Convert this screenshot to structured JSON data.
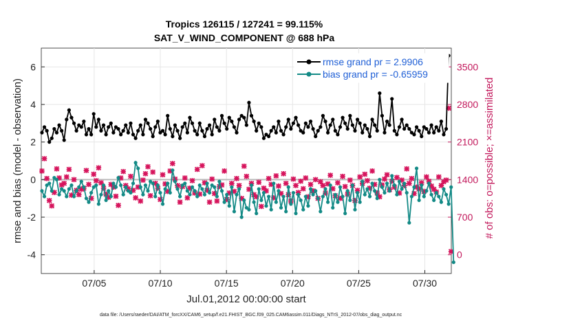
{
  "chart_data": {
    "type": "line",
    "title_line1": "Tropics 126115 / 127241 = 99.115%",
    "title_line2": "SAT_V_WIND_COMPONENT @ 688 hPa",
    "xlabel": "Jul.01,2012 00:00:00 start",
    "ylabel": "rmse and bias (model - observation)",
    "y2label": "# of obs: o=possible; ×=assimilated",
    "xlim": [
      1,
      32
    ],
    "ylim": [
      -5,
      7
    ],
    "y2lim": [
      -350,
      3850
    ],
    "x_ticks": [
      5,
      10,
      15,
      20,
      25,
      30
    ],
    "x_tick_labels": [
      "07/05",
      "07/10",
      "07/15",
      "07/20",
      "07/25",
      "07/30"
    ],
    "y_ticks": [
      -4,
      -2,
      0,
      2,
      4,
      6
    ],
    "y_tick_labels": [
      "-4",
      "-2",
      "0",
      "2",
      "4",
      "6"
    ],
    "y2_ticks": [
      0,
      700,
      1400,
      2100,
      2800,
      3500
    ],
    "y2_tick_labels": [
      "0",
      "700",
      "1400",
      "2100",
      "2800",
      "3500"
    ],
    "series": [
      {
        "name": "rmse grand pr = 2.9906",
        "color": "#000000"
      },
      {
        "name": "bias grand pr = -0.65959",
        "color": "#138a86"
      },
      {
        "name": "obs assimilated",
        "color": "#d6145c"
      }
    ],
    "rmse_values": [
      2.5,
      2.8,
      2.6,
      2.0,
      2.2,
      2.7,
      2.5,
      2.9,
      2.6,
      2.1,
      3.2,
      3.7,
      3.3,
      3.0,
      2.6,
      2.9,
      2.8,
      3.1,
      2.4,
      2.7,
      2.4,
      3.5,
      2.8,
      3.2,
      2.6,
      2.9,
      2.4,
      2.8,
      3.0,
      2.5,
      2.8,
      2.7,
      2.4,
      2.6,
      2.9,
      2.5,
      3.0,
      2.4,
      2.2,
      2.6,
      2.9,
      2.4,
      3.2,
      3.0,
      2.7,
      2.3,
      2.8,
      3.1,
      2.5,
      2.6,
      2.4,
      3.4,
      2.7,
      2.3,
      2.9,
      2.6,
      2.2,
      2.8,
      3.0,
      2.5,
      3.3,
      3.0,
      2.6,
      2.4,
      3.0,
      2.6,
      2.3,
      2.7,
      2.9,
      2.4,
      3.2,
      2.8,
      2.6,
      3.4,
      3.0,
      2.7,
      3.3,
      3.1,
      2.8,
      2.5,
      3.2,
      3.4,
      3.3,
      2.9,
      4.1,
      3.4,
      3.1,
      2.6,
      3.0,
      2.8,
      2.2,
      2.4,
      2.3,
      2.6,
      2.8,
      2.5,
      3.1,
      2.6,
      2.4,
      2.8,
      3.2,
      2.7,
      3.0,
      3.3,
      2.9,
      2.6,
      2.5,
      3.0,
      2.8,
      3.1,
      2.7,
      2.3,
      2.6,
      2.8,
      3.4,
      3.1,
      2.5,
      2.9,
      3.2,
      2.6,
      2.4,
      2.8,
      3.3,
      3.0,
      2.7,
      3.4,
      2.9,
      2.6,
      3.2,
      3.0,
      2.5,
      2.9,
      2.7,
      2.3,
      3.2,
      2.9,
      2.6,
      4.6,
      3.4,
      2.5,
      3.1,
      2.9,
      4.3,
      2.6,
      2.4,
      2.8,
      3.2,
      2.7,
      2.9,
      2.7,
      2.5,
      2.4,
      2.8,
      2.6,
      2.3,
      2.8,
      2.7,
      2.5,
      2.9,
      2.5,
      2.8,
      2.6,
      3.1,
      2.4,
      2.7,
      6.6
    ],
    "bias_values": [
      -0.6,
      -0.9,
      -0.3,
      -0.2,
      -0.6,
      0.1,
      0.0,
      -0.8,
      -0.5,
      -0.6,
      -0.9,
      -0.5,
      -0.3,
      -0.9,
      -0.6,
      -0.4,
      -0.1,
      -0.4,
      -1.0,
      -1.2,
      -0.7,
      -0.4,
      -0.3,
      -1.3,
      -0.8,
      -0.3,
      -1.1,
      -0.6,
      -0.9,
      -0.2,
      -0.4,
      0.1,
      -0.3,
      -0.8,
      -0.4,
      -0.6,
      -0.7,
      -0.2,
      0.9,
      0.6,
      -0.4,
      -0.8,
      -0.3,
      -0.6,
      -0.1,
      -0.2,
      -0.9,
      -0.3,
      -0.7,
      -1.3,
      -0.5,
      -0.2,
      -0.7,
      0.5,
      -0.1,
      -0.5,
      -0.9,
      -0.3,
      -0.2,
      -0.6,
      -0.8,
      -0.4,
      -0.6,
      -0.9,
      -0.3,
      -0.5,
      -0.8,
      -0.2,
      -0.7,
      -0.3,
      -0.4,
      -0.9,
      -0.1,
      -0.6,
      -1.2,
      -0.8,
      -1.4,
      -0.4,
      -1.7,
      -0.8,
      -0.5,
      -2.0,
      -1.1,
      -1.5,
      -1.6,
      -0.3,
      -1.2,
      -1.8,
      -0.5,
      -1.1,
      -0.7,
      -1.4,
      -0.9,
      -1.6,
      -0.2,
      -1.2,
      -0.6,
      -1.5,
      -0.9,
      -1.7,
      -0.4,
      -1.3,
      -0.7,
      -1.8,
      -0.8,
      -1.1,
      -1.6,
      -0.9,
      -1.4,
      -0.5,
      -0.8,
      -0.6,
      -1.0,
      -1.7,
      -0.9,
      -0.5,
      -1.2,
      -0.3,
      -1.5,
      -0.8,
      -1.2,
      -0.4,
      -0.9,
      -1.8,
      -0.6,
      -1.1,
      -0.3,
      -1.6,
      -0.7,
      -1.2,
      -0.1,
      -0.8,
      -0.5,
      -0.9,
      -0.2,
      -0.6,
      -1.0,
      0.0,
      -0.4,
      -0.7,
      -0.2,
      -0.6,
      0.2,
      -0.3,
      -0.8,
      -0.1,
      -0.5,
      -0.2,
      -0.7,
      -2.3,
      -0.9,
      -0.4,
      0.6,
      -1.1,
      -0.3,
      -0.9,
      -0.6,
      -0.2,
      -0.8,
      -1.1,
      -0.7,
      -0.9,
      -1.2,
      -0.5,
      -0.8,
      -1.3,
      -0.4,
      -4.4
    ],
    "obs_values": [
      1560,
      1790,
      1420,
      1010,
      910,
      1160,
      1600,
      1430,
      1300,
      1330,
      1450,
      1590,
      1110,
      1400,
      1200,
      1120,
      1220,
      1240,
      1570,
      1310,
      1050,
      1500,
      1380,
      1620,
      1340,
      1240,
      1130,
      1070,
      1310,
      1260,
      1090,
      920,
      1430,
      1550,
      1290,
      1230,
      1460,
      1200,
      1060,
      1260,
      1000,
      1390,
      1510,
      1640,
      1100,
      1540,
      1330,
      1240,
      1030,
      1490,
      1320,
      1180,
      1560,
      1700,
      1410,
      1290,
      980,
      1270,
      1430,
      1060,
      1240,
      1380,
      1150,
      1590,
      1130,
      1660,
      1340,
      1200,
      980,
      1410,
      1140,
      1000,
      1270,
      1300,
      1560,
      1030,
      1150,
      1330,
      1180,
      1420,
      1290,
      1050,
      1650,
      1460,
      1220,
      1330,
      1120,
      1080,
      1350,
      900,
      1240,
      1190,
      1420,
      1310,
      1060,
      1470,
      1280,
      1140,
      1510,
      1330,
      1120,
      1000,
      1410,
      1290,
      1160,
      1370,
      1230,
      1430,
      1080,
      1310,
      1190,
      1400,
      1050,
      1360,
      1290,
      1150,
      1320,
      1480,
      1230,
      1100,
      1340,
      1050,
      1460,
      1270,
      1130,
      1390,
      1290,
      1010,
      1200,
      1450,
      1330,
      1500,
      1380,
      1240,
      1560,
      1310,
      1150,
      1080,
      1300,
      1410,
      1490,
      1210,
      1370,
      1260,
      1440,
      1150,
      1390,
      1290,
      1600,
      1330,
      1420,
      1140,
      1260,
      1230,
      1340,
      1180,
      1450,
      1370,
      1280,
      1220,
      1170,
      1450,
      1290,
      1360,
      1390,
      2730,
      60
    ]
  },
  "footer_text": "data file: /Users/raeder/DAI/ATM_forcXX/CAM6_setup/f.e21.FHIST_BGC.f09_025.CAM6assim.011/Diags_NTrS_2012-07/obs_diag_output.nc"
}
